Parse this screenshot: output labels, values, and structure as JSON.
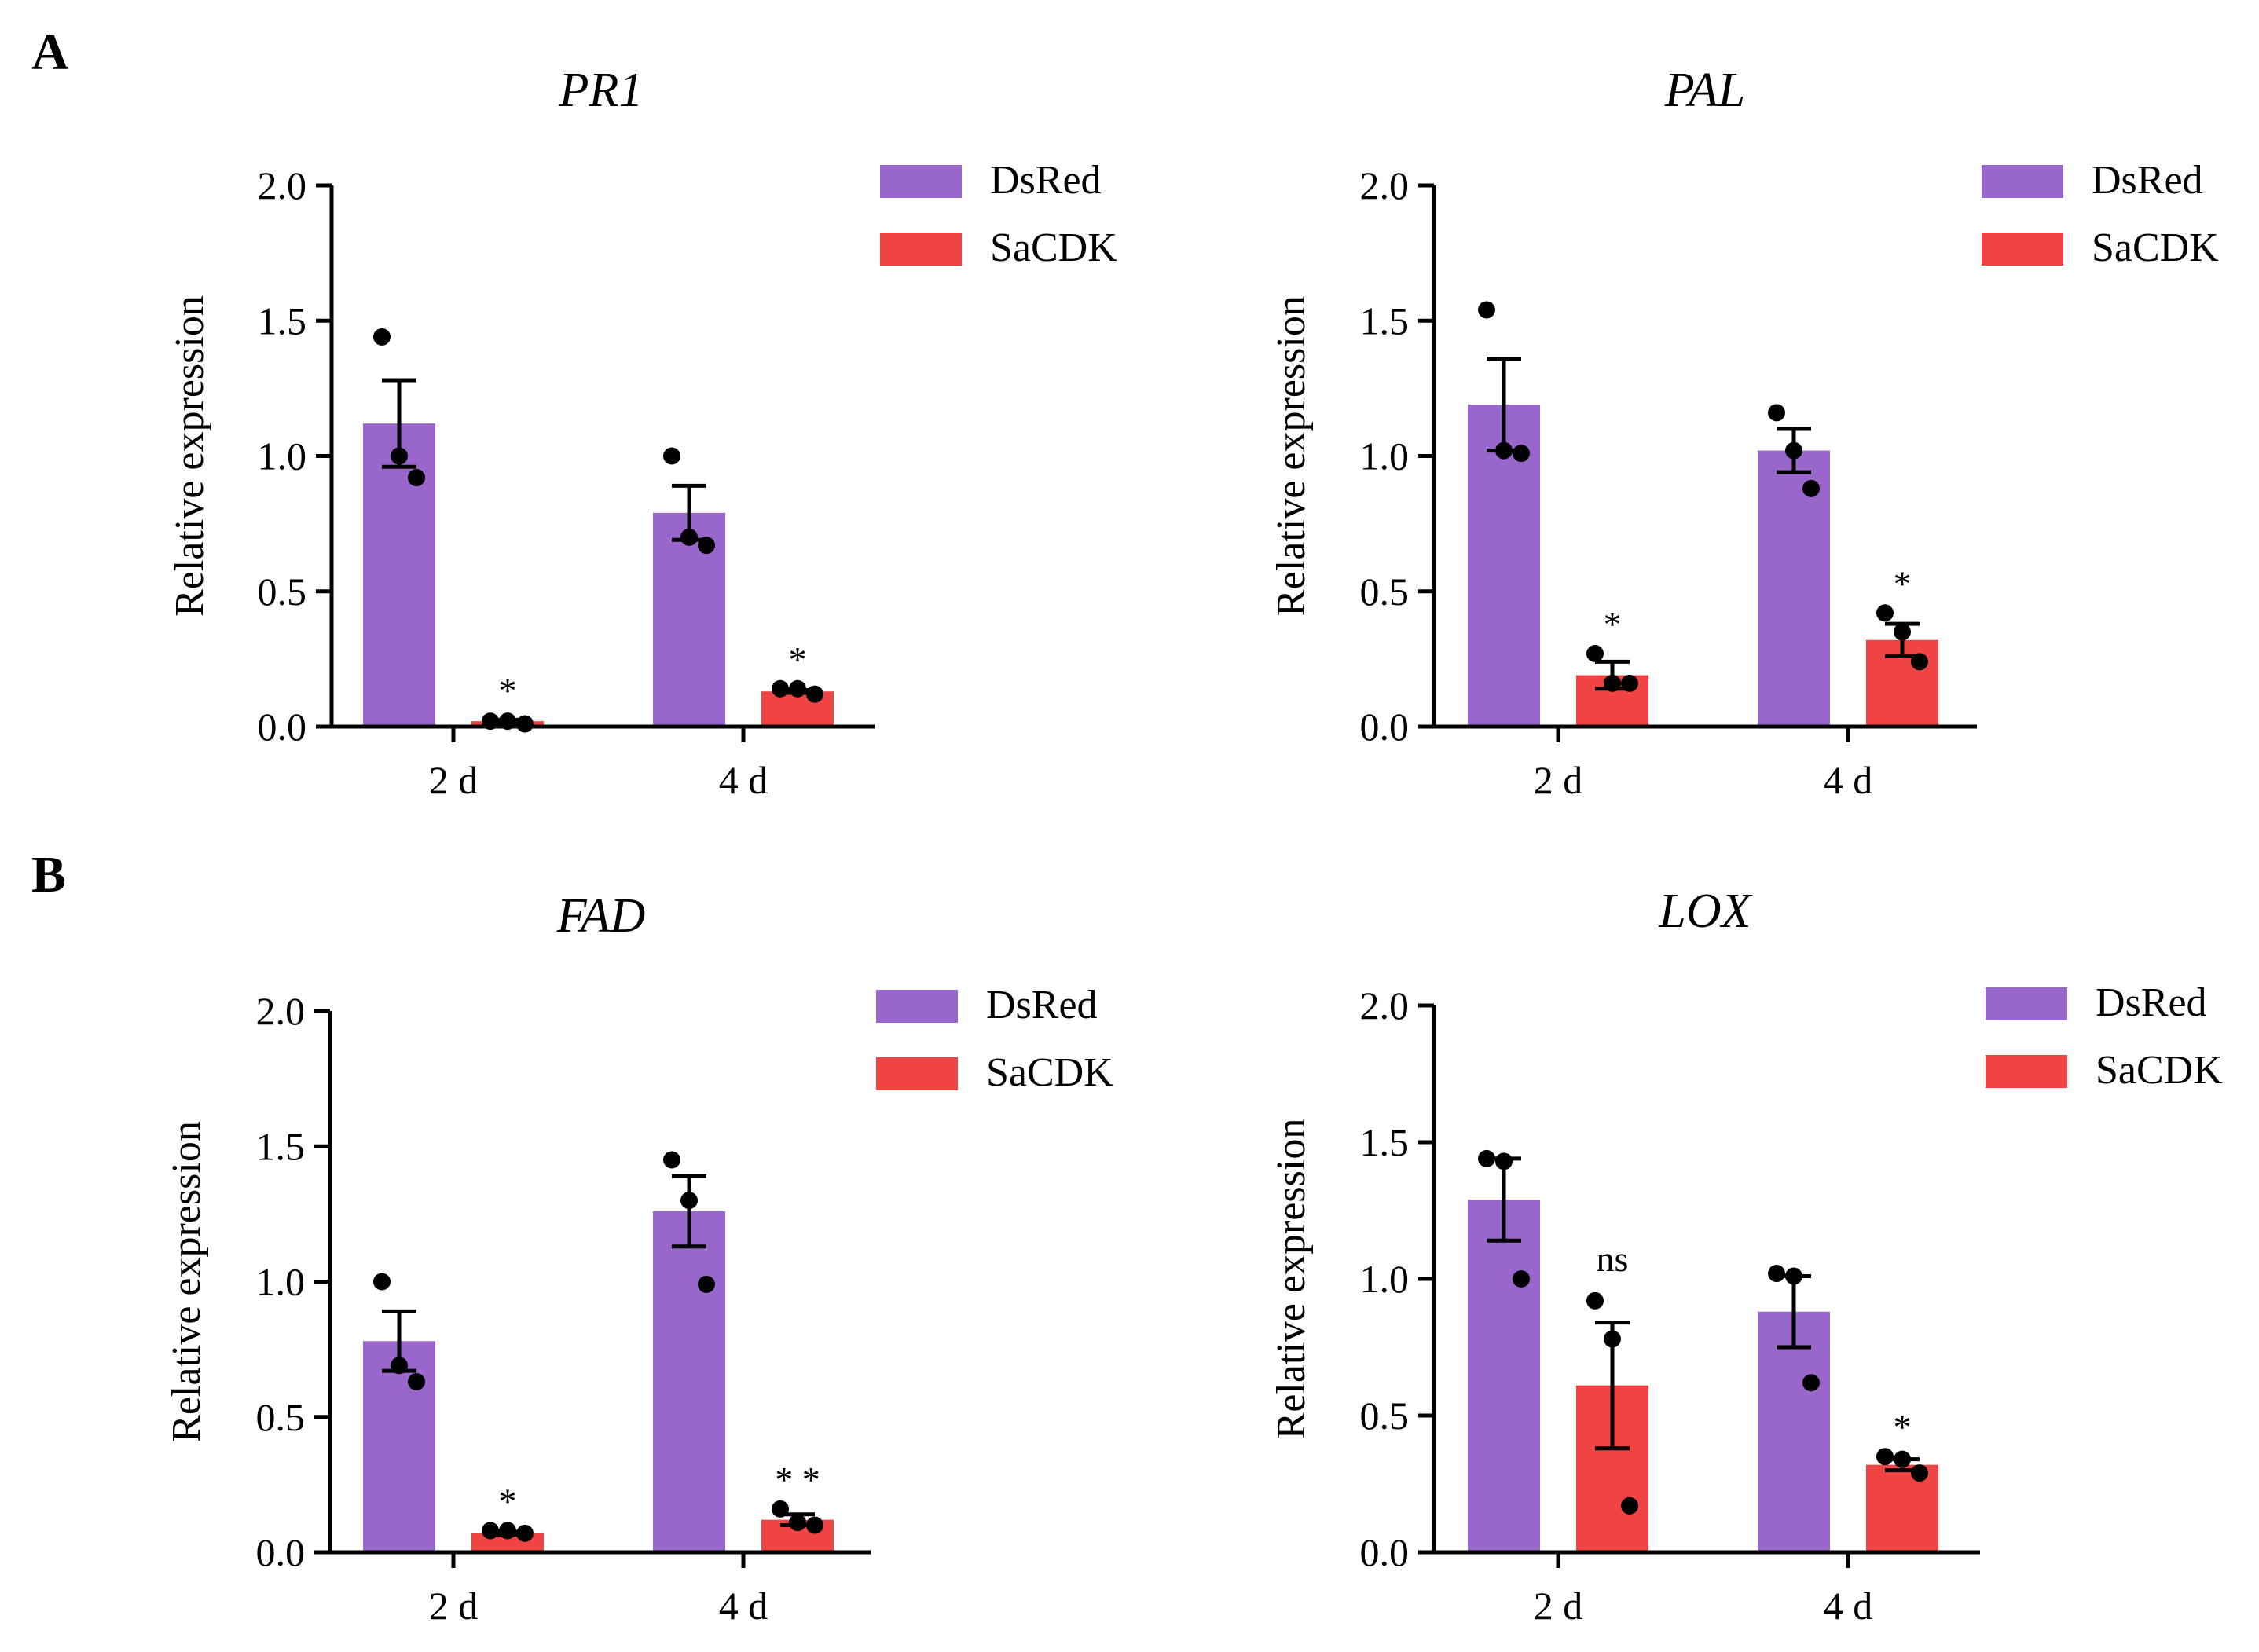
{
  "panels": {
    "A": "A",
    "B": "B"
  },
  "colors": {
    "DsRed": "#9966CC",
    "SaCDK": "#F04444",
    "axis": "#000000",
    "point": "#000000"
  },
  "chart_data": [
    {
      "type": "bar",
      "panel": "A",
      "title": "PR1",
      "xlabel": "",
      "ylabel": "Relative expression",
      "ylim": [
        0,
        2.0
      ],
      "yticks": [
        "0.0",
        "0.5",
        "1.0",
        "1.5",
        "2.0"
      ],
      "categories": [
        "2 d",
        "4 d"
      ],
      "legend": [
        "DsRed",
        "SaCDK"
      ],
      "legend_position": "top-right",
      "series": [
        {
          "name": "DsRed",
          "values": [
            1.12,
            0.79
          ],
          "errors": [
            0.16,
            0.1
          ],
          "points": [
            [
              1.44,
              1.0,
              0.92
            ],
            [
              1.0,
              0.7,
              0.67
            ]
          ],
          "significance": [
            "",
            ""
          ]
        },
        {
          "name": "SaCDK",
          "values": [
            0.02,
            0.13
          ],
          "errors": [
            0.005,
            0.005
          ],
          "points": [
            [
              0.02,
              0.02,
              0.01
            ],
            [
              0.14,
              0.14,
              0.12
            ]
          ],
          "significance": [
            "*",
            "*"
          ]
        }
      ]
    },
    {
      "type": "bar",
      "panel": "A",
      "title": "PAL",
      "xlabel": "",
      "ylabel": "Relative expression",
      "ylim": [
        0,
        2.0
      ],
      "yticks": [
        "0.0",
        "0.5",
        "1.0",
        "1.5",
        "2.0"
      ],
      "categories": [
        "2 d",
        "4 d"
      ],
      "legend": [
        "DsRed",
        "SaCDK"
      ],
      "legend_position": "top-right",
      "series": [
        {
          "name": "DsRed",
          "values": [
            1.19,
            1.02
          ],
          "errors": [
            0.17,
            0.08
          ],
          "points": [
            [
              1.54,
              1.02,
              1.01
            ],
            [
              1.16,
              1.02,
              0.88
            ]
          ],
          "significance": [
            "",
            ""
          ]
        },
        {
          "name": "SaCDK",
          "values": [
            0.19,
            0.32
          ],
          "errors": [
            0.05,
            0.06
          ],
          "points": [
            [
              0.27,
              0.16,
              0.16
            ],
            [
              0.42,
              0.35,
              0.24
            ]
          ],
          "significance": [
            "*",
            "*"
          ]
        }
      ]
    },
    {
      "type": "bar",
      "panel": "B",
      "title": "FAD",
      "xlabel": "",
      "ylabel": "Relative expression",
      "ylim": [
        0,
        2.0
      ],
      "yticks": [
        "0.0",
        "0.5",
        "1.0",
        "1.5",
        "2.0"
      ],
      "categories": [
        "2 d",
        "4 d"
      ],
      "legend": [
        "DsRed",
        "SaCDK"
      ],
      "legend_position": "top-right",
      "series": [
        {
          "name": "DsRed",
          "values": [
            0.78,
            1.26
          ],
          "errors": [
            0.11,
            0.13
          ],
          "points": [
            [
              1.0,
              0.69,
              0.63
            ],
            [
              1.45,
              1.3,
              0.99
            ]
          ],
          "significance": [
            "",
            ""
          ]
        },
        {
          "name": "SaCDK",
          "values": [
            0.07,
            0.12
          ],
          "errors": [
            0.005,
            0.02
          ],
          "points": [
            [
              0.08,
              0.08,
              0.07
            ],
            [
              0.16,
              0.11,
              0.1
            ]
          ],
          "significance": [
            "*",
            "* *"
          ]
        }
      ]
    },
    {
      "type": "bar",
      "panel": "B",
      "title": "LOX",
      "xlabel": "",
      "ylabel": "Relative expression",
      "ylim": [
        0,
        2.0
      ],
      "yticks": [
        "0.0",
        "0.5",
        "1.0",
        "1.5",
        "2.0"
      ],
      "categories": [
        "2 d",
        "4 d"
      ],
      "legend": [
        "DsRed",
        "SaCDK"
      ],
      "legend_position": "top-right",
      "series": [
        {
          "name": "DsRed",
          "values": [
            1.29,
            0.88
          ],
          "errors": [
            0.15,
            0.13
          ],
          "points": [
            [
              1.44,
              1.43,
              1.0
            ],
            [
              1.02,
              1.01,
              0.62
            ]
          ],
          "significance": [
            "",
            ""
          ]
        },
        {
          "name": "SaCDK",
          "values": [
            0.61,
            0.32
          ],
          "errors": [
            0.23,
            0.02
          ],
          "points": [
            [
              0.92,
              0.78,
              0.17
            ],
            [
              0.35,
              0.34,
              0.29
            ]
          ],
          "significance": [
            "ns",
            "*"
          ]
        }
      ]
    }
  ]
}
